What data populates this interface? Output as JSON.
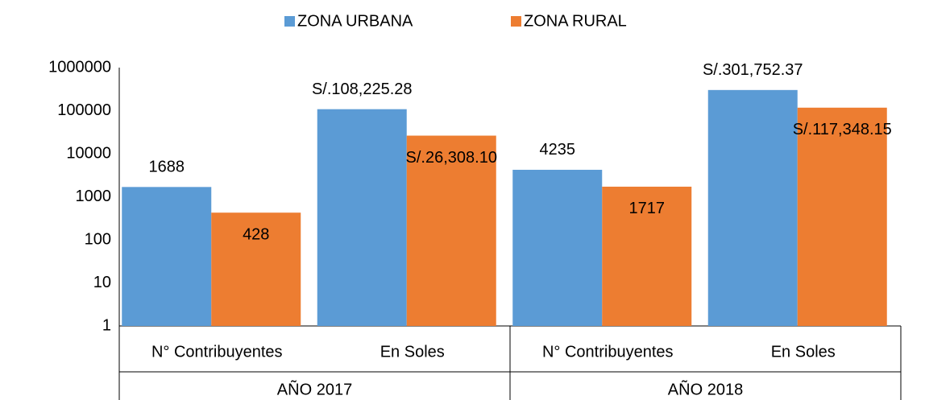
{
  "chart_data": {
    "type": "bar",
    "categories": [
      "N° Contribuyentes",
      "En Soles",
      "N° Contribuyentes",
      "En Soles"
    ],
    "group_categories": [
      "AÑO 2017",
      "AÑO 2018"
    ],
    "series": [
      {
        "name": "ZONA URBANA",
        "color": "#5b9bd5",
        "values": [
          1688,
          108225.28,
          4235,
          301752.37
        ],
        "value_labels": [
          "1688",
          "S/.108,225.28",
          "4235",
          "S/.301,752.37"
        ]
      },
      {
        "name": "ZONA RURAL",
        "color": "#ed7d31",
        "values": [
          428,
          26308.1,
          1717,
          117348.15
        ],
        "value_labels": [
          "428",
          "S/.26,308.10",
          "1717",
          "S/.117,348.15"
        ]
      }
    ],
    "ylim": [
      1,
      1000000
    ],
    "yticks": [
      1,
      10,
      100,
      1000,
      10000,
      100000,
      1000000
    ],
    "log_scale": true,
    "grid": false,
    "legend": "top"
  }
}
